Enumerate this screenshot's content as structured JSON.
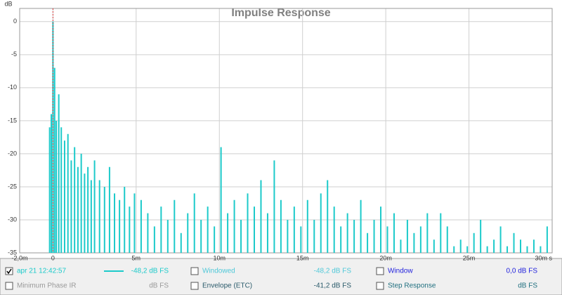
{
  "chart_data": {
    "type": "impulse",
    "title": "Impulse Response",
    "y_label": "dB",
    "series": [
      {
        "name": "apr 21 12:42:57",
        "color": "#1ccaca",
        "x": [
          -0.2,
          -0.1,
          0,
          0.1,
          0.2,
          0.35,
          0.5,
          0.7,
          0.9,
          1.1,
          1.3,
          1.5,
          1.7,
          1.9,
          2.1,
          2.3,
          2.5,
          2.8,
          3.1,
          3.4,
          3.7,
          4.0,
          4.3,
          4.6,
          4.9,
          5.3,
          5.7,
          6.1,
          6.5,
          6.9,
          7.3,
          7.7,
          8.1,
          8.5,
          8.9,
          9.3,
          9.7,
          10.1,
          10.5,
          10.9,
          11.3,
          11.7,
          12.1,
          12.5,
          12.9,
          13.3,
          13.7,
          14.1,
          14.5,
          14.9,
          15.3,
          15.7,
          16.1,
          16.5,
          16.9,
          17.3,
          17.7,
          18.1,
          18.5,
          18.9,
          19.3,
          19.7,
          20.1,
          20.5,
          20.9,
          21.3,
          21.7,
          22.1,
          22.5,
          22.9,
          23.3,
          23.7,
          24.1,
          24.5,
          24.9,
          25.3,
          25.7,
          26.1,
          26.5,
          26.9,
          27.3,
          27.7,
          28.1,
          28.5,
          28.9,
          29.3,
          29.7
        ],
        "values": [
          -16,
          -14,
          0,
          -7,
          -15,
          -11,
          -16,
          -18,
          -17,
          -21,
          -19,
          -22,
          -20,
          -23,
          -22,
          -24,
          -21,
          -24,
          -25,
          -22,
          -26,
          -27,
          -25,
          -28,
          -26,
          -27,
          -29,
          -31,
          -28,
          -30,
          -27,
          -32,
          -29,
          -26,
          -30,
          -28,
          -31,
          -19,
          -29,
          -27,
          -30,
          -26,
          -28,
          -24,
          -29,
          -21,
          -27,
          -30,
          -28,
          -31,
          -27,
          -30,
          -26,
          -24,
          -28,
          -31,
          -29,
          -30,
          -27,
          -32,
          -30,
          -28,
          -31,
          -29,
          -33,
          -30,
          -32,
          -31,
          -29,
          -33,
          -29,
          -31,
          -34,
          -33,
          -34,
          -32,
          -30,
          -34,
          -33,
          -31,
          -34,
          -32,
          -33,
          -34,
          -33,
          -34,
          -31
        ]
      }
    ],
    "xlim": [
      -2,
      30
    ],
    "ylim": [
      -35,
      2
    ],
    "xticks": [
      {
        "value": -2,
        "label": "-2,0m"
      },
      0,
      {
        "value": 5,
        "label": "5m"
      },
      {
        "value": 10,
        "label": "10m"
      },
      {
        "value": 15,
        "label": "15m"
      },
      {
        "value": 20,
        "label": "20m"
      },
      {
        "value": 25,
        "label": "25m"
      },
      {
        "value": 30,
        "label": "30m s"
      }
    ],
    "yticks": [
      0,
      -5,
      -10,
      -15,
      -20,
      -25,
      -30,
      -35
    ],
    "grid": true
  },
  "legend_panel": {
    "rows": [
      [
        {
          "label": "apr 21 12:42:57",
          "reading": "-48,2 dB FS",
          "checked": true,
          "color": "#1ccaca"
        },
        {
          "label": "Windowed",
          "reading": "-48,2 dB FS",
          "checked": false,
          "color": "#4fc8d8"
        },
        {
          "label": "Window",
          "reading": "0,0 dB FS",
          "checked": false,
          "color": "#2222dd"
        }
      ],
      [
        {
          "label": "Minimum Phase IR",
          "reading": "dB FS",
          "checked": false,
          "color": "#999999"
        },
        {
          "label": "Envelope (ETC)",
          "reading": "-41,2 dB FS",
          "checked": false,
          "color": "#2a5a6a"
        },
        {
          "label": "Step Response",
          "reading": "dB FS",
          "checked": false,
          "color": "#1f6f7f"
        }
      ]
    ]
  }
}
